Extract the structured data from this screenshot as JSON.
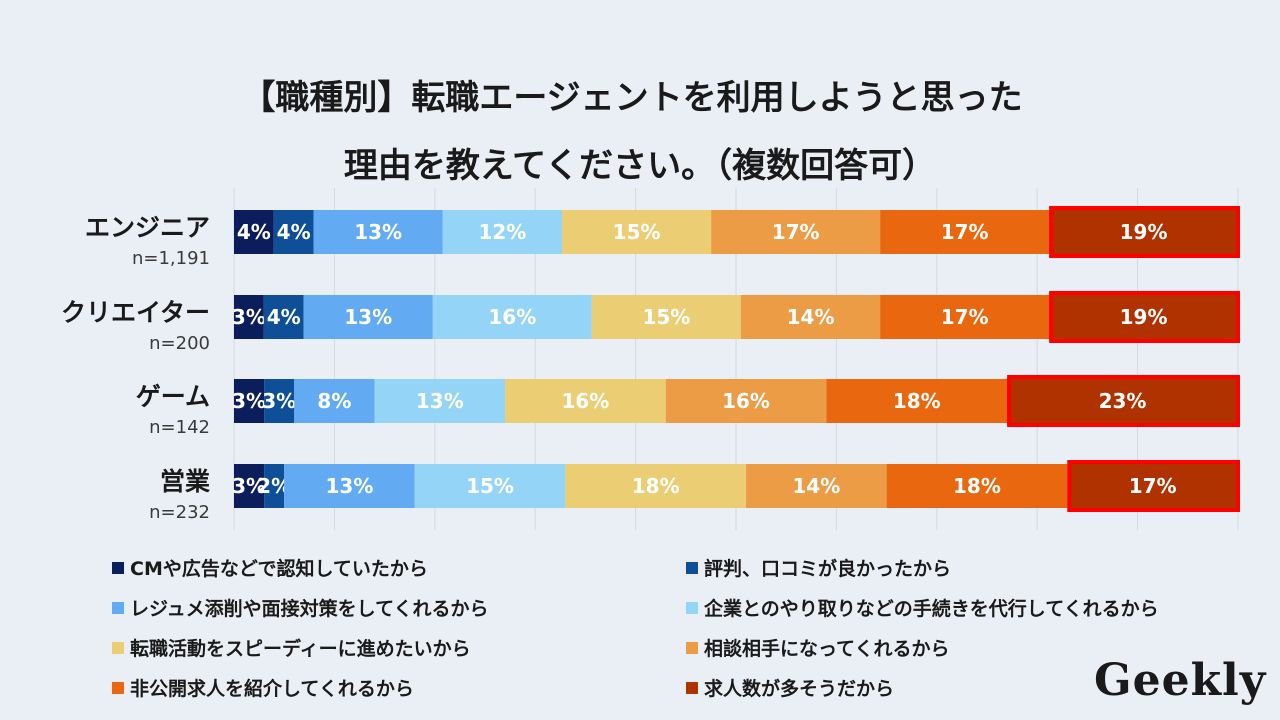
{
  "title_line1": "【職種別】転職エージェントを利用しようと思った",
  "title_line2": "理由を教えてください。（複数回答可）",
  "logo": "Geekly",
  "colors": {
    "highlight_border": "#ff0000",
    "gridline": "#d3d9e2",
    "background": "#eaeff6"
  },
  "chart_data": {
    "type": "bar",
    "orientation": "horizontal",
    "stacked": true,
    "percent_stacked": true,
    "categories": [
      "エンジニア",
      "クリエイター",
      "ゲーム",
      "営業"
    ],
    "sample_sizes": [
      "n=1,191",
      "n=200",
      "n=142",
      "n=232"
    ],
    "series": [
      {
        "name": "CMや広告などで認知していたから",
        "color": "#0c1d5c",
        "values": [
          4,
          3,
          3,
          3
        ]
      },
      {
        "name": "評判、口コミが良かったから",
        "color": "#0e4f98",
        "values": [
          4,
          4,
          3,
          2
        ]
      },
      {
        "name": "レジュメ添削や面接対策をしてくれるから",
        "color": "#62aaf2",
        "values": [
          13,
          13,
          8,
          13
        ]
      },
      {
        "name": "企業とのやり取りなどの手続きを代行してくれるから",
        "color": "#94d4f6",
        "values": [
          12,
          16,
          13,
          15
        ]
      },
      {
        "name": "転職活動をスピーディーに進めたいから",
        "color": "#ebcd74",
        "values": [
          15,
          15,
          16,
          18
        ]
      },
      {
        "name": "相談相手になってくれるから",
        "color": "#ec9c44",
        "values": [
          17,
          14,
          16,
          14
        ]
      },
      {
        "name": "非公開求人を紹介してくれるから",
        "color": "#e9680f",
        "values": [
          17,
          17,
          18,
          18
        ]
      },
      {
        "name": "求人数が多そうだから",
        "color": "#b03200",
        "values": [
          19,
          19,
          23,
          17
        ]
      }
    ],
    "label_suffix": "%",
    "highlight_series": "求人数が多そうだから",
    "xlim": [
      0,
      100
    ],
    "grid": true,
    "legend_position": "bottom"
  }
}
